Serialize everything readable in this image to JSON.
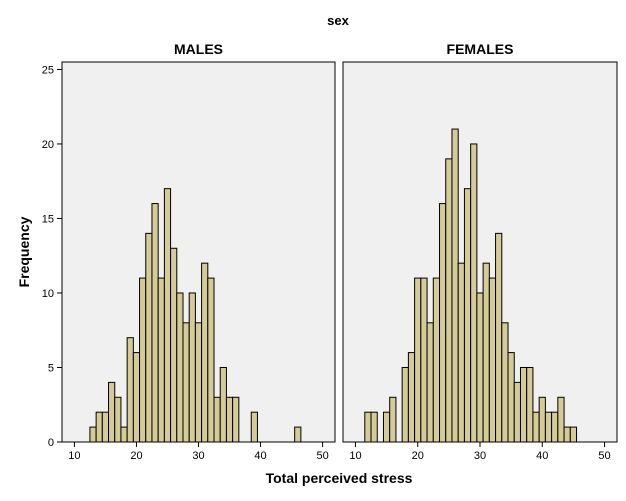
{
  "chart_data": {
    "type": "bar",
    "title": "sex",
    "xlabel": "Total perceived stress",
    "ylabel": "Frequency",
    "xlim": [
      8,
      52
    ],
    "ylim": [
      0,
      25.5
    ],
    "x_ticks": [
      10,
      20,
      30,
      40,
      50
    ],
    "y_ticks": [
      0,
      5,
      10,
      15,
      20,
      25
    ],
    "bin_width": 1,
    "colors": {
      "bar_fill": "#d5cb98",
      "bar_stroke": "#000000",
      "panel_bg": "#f0f0f0",
      "frame": "#000000"
    },
    "panels": [
      {
        "name": "MALES",
        "bins": [
          {
            "x": 13,
            "value": 1
          },
          {
            "x": 14,
            "value": 2
          },
          {
            "x": 15,
            "value": 2
          },
          {
            "x": 16,
            "value": 4
          },
          {
            "x": 17,
            "value": 3
          },
          {
            "x": 18,
            "value": 1
          },
          {
            "x": 19,
            "value": 7
          },
          {
            "x": 20,
            "value": 6
          },
          {
            "x": 21,
            "value": 11
          },
          {
            "x": 22,
            "value": 14
          },
          {
            "x": 23,
            "value": 16
          },
          {
            "x": 24,
            "value": 11
          },
          {
            "x": 25,
            "value": 17
          },
          {
            "x": 26,
            "value": 13
          },
          {
            "x": 27,
            "value": 10
          },
          {
            "x": 28,
            "value": 8
          },
          {
            "x": 29,
            "value": 10
          },
          {
            "x": 30,
            "value": 8
          },
          {
            "x": 31,
            "value": 12
          },
          {
            "x": 32,
            "value": 11
          },
          {
            "x": 33,
            "value": 3
          },
          {
            "x": 34,
            "value": 5
          },
          {
            "x": 35,
            "value": 3
          },
          {
            "x": 36,
            "value": 3
          },
          {
            "x": 39,
            "value": 2
          },
          {
            "x": 46,
            "value": 1
          }
        ]
      },
      {
        "name": "FEMALES",
        "bins": [
          {
            "x": 12,
            "value": 2
          },
          {
            "x": 13,
            "value": 2
          },
          {
            "x": 15,
            "value": 2
          },
          {
            "x": 16,
            "value": 3
          },
          {
            "x": 18,
            "value": 5
          },
          {
            "x": 19,
            "value": 6
          },
          {
            "x": 20,
            "value": 11
          },
          {
            "x": 21,
            "value": 11
          },
          {
            "x": 22,
            "value": 8
          },
          {
            "x": 23,
            "value": 11
          },
          {
            "x": 24,
            "value": 16
          },
          {
            "x": 25,
            "value": 19
          },
          {
            "x": 26,
            "value": 21
          },
          {
            "x": 27,
            "value": 12
          },
          {
            "x": 28,
            "value": 17
          },
          {
            "x": 29,
            "value": 20
          },
          {
            "x": 30,
            "value": 10
          },
          {
            "x": 31,
            "value": 12
          },
          {
            "x": 32,
            "value": 11
          },
          {
            "x": 33,
            "value": 14
          },
          {
            "x": 34,
            "value": 8
          },
          {
            "x": 35,
            "value": 6
          },
          {
            "x": 36,
            "value": 4
          },
          {
            "x": 37,
            "value": 5
          },
          {
            "x": 38,
            "value": 5
          },
          {
            "x": 39,
            "value": 2
          },
          {
            "x": 40,
            "value": 3
          },
          {
            "x": 41,
            "value": 2
          },
          {
            "x": 42,
            "value": 2
          },
          {
            "x": 43,
            "value": 3
          },
          {
            "x": 44,
            "value": 1
          },
          {
            "x": 45,
            "value": 1
          }
        ]
      }
    ]
  }
}
